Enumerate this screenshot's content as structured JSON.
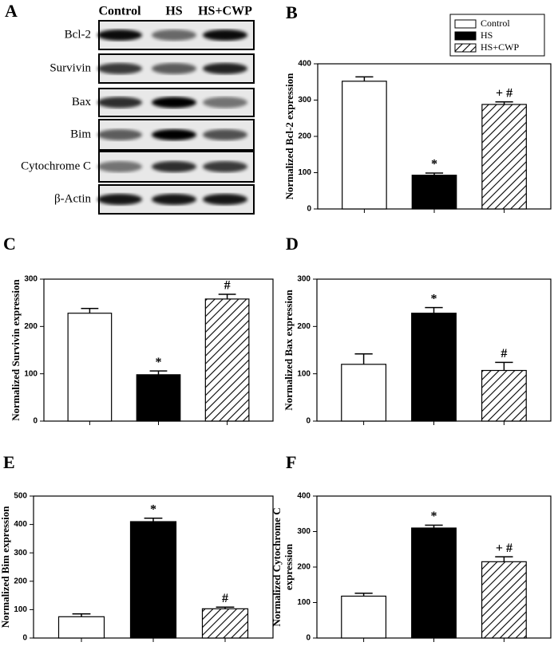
{
  "blot": {
    "panel_label": "A",
    "lanes": [
      "Control",
      "HS",
      "HS+CWP"
    ],
    "rows": [
      "Bcl-2",
      "Survivin",
      "Bax",
      "Bim",
      "Cytochrome C",
      "β-Actin"
    ]
  },
  "chart_data": [
    {
      "type": "bar",
      "panel_label": "B",
      "ylabel": "Normalized Bcl-2 expression",
      "legend": [
        "Control",
        "HS",
        "HS+CWP"
      ],
      "styles": [
        "white",
        "black",
        "hatch"
      ],
      "values": [
        352,
        93,
        288
      ],
      "errors": [
        12,
        6,
        7
      ],
      "annotations": [
        {
          "index": 1,
          "text": "*"
        },
        {
          "index": 2,
          "text": "+ #"
        }
      ],
      "ylim": [
        0,
        400
      ],
      "yticks": [
        0,
        100,
        200,
        300,
        400
      ]
    },
    {
      "type": "bar",
      "panel_label": "C",
      "ylabel": "Normalized Survivin expression",
      "styles": [
        "white",
        "black",
        "hatch"
      ],
      "values": [
        228,
        98,
        258
      ],
      "errors": [
        10,
        8,
        10
      ],
      "annotations": [
        {
          "index": 1,
          "text": "*"
        },
        {
          "index": 2,
          "text": "#"
        }
      ],
      "ylim": [
        0,
        300
      ],
      "yticks": [
        0,
        100,
        200,
        300
      ]
    },
    {
      "type": "bar",
      "panel_label": "D",
      "ylabel": "Normalized Bax expression",
      "styles": [
        "white",
        "black",
        "hatch"
      ],
      "values": [
        120,
        228,
        107
      ],
      "errors": [
        22,
        12,
        17
      ],
      "annotations": [
        {
          "index": 1,
          "text": "*"
        },
        {
          "index": 2,
          "text": "#"
        }
      ],
      "ylim": [
        0,
        300
      ],
      "yticks": [
        0,
        100,
        200,
        300
      ]
    },
    {
      "type": "bar",
      "panel_label": "E",
      "ylabel": "Normalized Bim expression",
      "styles": [
        "white",
        "black",
        "hatch"
      ],
      "values": [
        75,
        410,
        103
      ],
      "errors": [
        10,
        12,
        6
      ],
      "annotations": [
        {
          "index": 1,
          "text": "*"
        },
        {
          "index": 2,
          "text": "#"
        }
      ],
      "ylim": [
        0,
        500
      ],
      "yticks": [
        0,
        100,
        200,
        300,
        400,
        500
      ]
    },
    {
      "type": "bar",
      "panel_label": "F",
      "ylabel": [
        "Normalized Cytochrome C",
        "expression"
      ],
      "styles": [
        "white",
        "black",
        "hatch"
      ],
      "values": [
        118,
        310,
        215
      ],
      "errors": [
        8,
        8,
        14
      ],
      "annotations": [
        {
          "index": 1,
          "text": "*"
        },
        {
          "index": 2,
          "text": "+ #"
        }
      ],
      "ylim": [
        0,
        400
      ],
      "yticks": [
        0,
        100,
        200,
        300,
        400
      ]
    }
  ]
}
